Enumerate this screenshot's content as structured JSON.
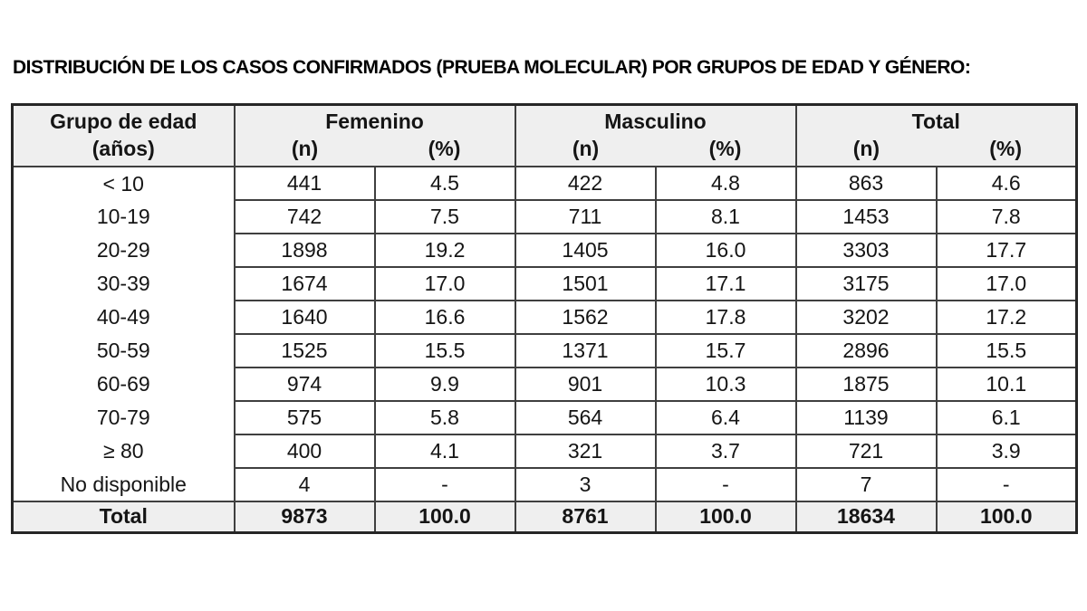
{
  "title": "DISTRIBUCIÓN DE LOS CASOS CONFIRMADOS (PRUEBA MOLECULAR) POR GRUPOS DE EDAD Y GÉNERO:",
  "chart_data": {
    "type": "table",
    "title": "DISTRIBUCIÓN DE LOS CASOS CONFIRMADOS (PRUEBA MOLECULAR) POR GRUPOS DE EDAD Y GÉNERO:",
    "row_header": {
      "line1": "Grupo de edad",
      "line2": "(años)"
    },
    "groups": [
      {
        "label": "Femenino",
        "sub": [
          "(n)",
          "(%)"
        ]
      },
      {
        "label": "Masculino",
        "sub": [
          "(n)",
          "(%)"
        ]
      },
      {
        "label": "Total",
        "sub": [
          "(n)",
          "(%)"
        ]
      }
    ],
    "rows": [
      [
        "< 10",
        "441",
        "4.5",
        "422",
        "4.8",
        "863",
        "4.6"
      ],
      [
        "10-19",
        "742",
        "7.5",
        "711",
        "8.1",
        "1453",
        "7.8"
      ],
      [
        "20-29",
        "1898",
        "19.2",
        "1405",
        "16.0",
        "3303",
        "17.7"
      ],
      [
        "30-39",
        "1674",
        "17.0",
        "1501",
        "17.1",
        "3175",
        "17.0"
      ],
      [
        "40-49",
        "1640",
        "16.6",
        "1562",
        "17.8",
        "3202",
        "17.2"
      ],
      [
        "50-59",
        "1525",
        "15.5",
        "1371",
        "15.7",
        "2896",
        "15.5"
      ],
      [
        "60-69",
        "974",
        "9.9",
        "901",
        "10.3",
        "1875",
        "10.1"
      ],
      [
        "70-79",
        "575",
        "5.8",
        "564",
        "6.4",
        "1139",
        "6.1"
      ],
      [
        "≥ 80",
        "400",
        "4.1",
        "321",
        "3.7",
        "721",
        "3.9"
      ],
      [
        "No disponible",
        "4",
        "-",
        "3",
        "-",
        "7",
        "-"
      ]
    ],
    "total_row": [
      "Total",
      "9873",
      "100.0",
      "8761",
      "100.0",
      "18634",
      "100.0"
    ],
    "colors": {
      "header_background": "#efefef",
      "total_row_background": "#efefef",
      "border": "#3f3f3f",
      "outer_border": "#262626",
      "text": "#151515"
    }
  }
}
